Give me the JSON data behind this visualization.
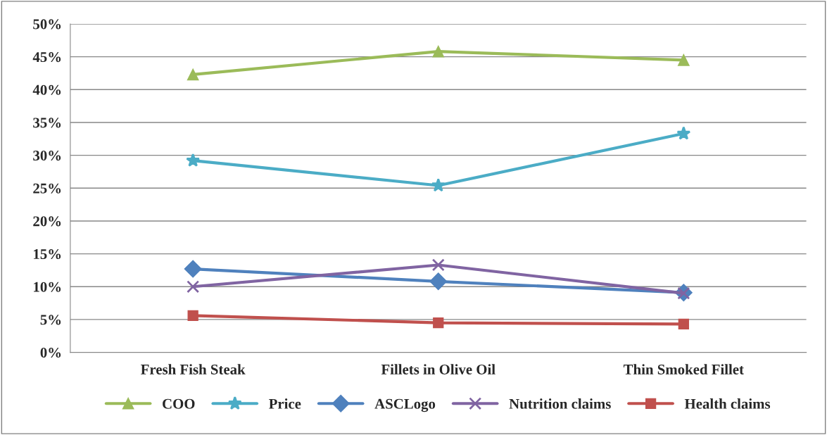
{
  "chart_data": {
    "type": "line",
    "categories": [
      "Fresh Fish Steak",
      "Fillets in Olive Oil",
      "Thin Smoked Fillet"
    ],
    "series": [
      {
        "name": "COO",
        "color": "#9bbb59",
        "marker": "triangle",
        "values": [
          42.3,
          45.8,
          44.5
        ]
      },
      {
        "name": "Price",
        "color": "#4bacc6",
        "marker": "star",
        "values": [
          29.2,
          25.4,
          33.3
        ]
      },
      {
        "name": "ASCLogo",
        "color": "#4f81bd",
        "marker": "diamond",
        "values": [
          12.7,
          10.8,
          9.1
        ]
      },
      {
        "name": "Nutrition claims",
        "color": "#8064a2",
        "marker": "cross",
        "values": [
          10.0,
          13.3,
          9.0
        ]
      },
      {
        "name": "Health claims",
        "color": "#c0504d",
        "marker": "square",
        "values": [
          5.6,
          4.5,
          4.3
        ]
      }
    ],
    "ylim": [
      0,
      50
    ],
    "yticks": [
      {
        "value": 0,
        "label": "0%"
      },
      {
        "value": 5,
        "label": "5%"
      },
      {
        "value": 10,
        "label": "10%"
      },
      {
        "value": 15,
        "label": "15%"
      },
      {
        "value": 20,
        "label": "20%"
      },
      {
        "value": 25,
        "label": "25%"
      },
      {
        "value": 30,
        "label": "30%"
      },
      {
        "value": 35,
        "label": "35%"
      },
      {
        "value": 40,
        "label": "40%"
      },
      {
        "value": 45,
        "label": "45%"
      },
      {
        "value": 50,
        "label": "50%"
      }
    ],
    "grid": "y",
    "legend": "bottom",
    "line_style": "solid"
  }
}
